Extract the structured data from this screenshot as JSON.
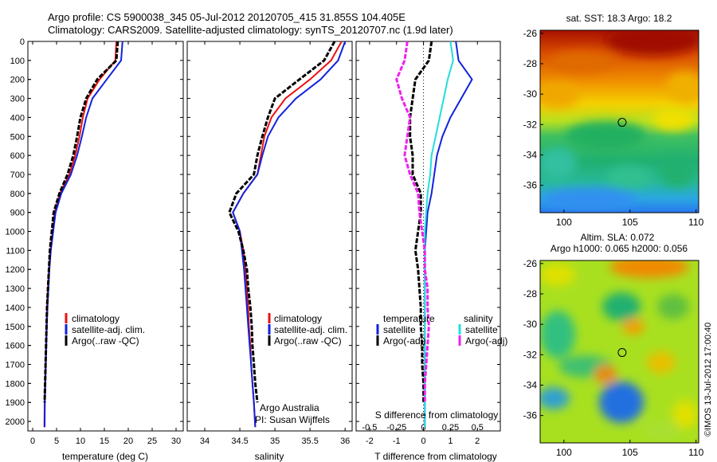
{
  "header": {
    "title_line1": "Argo profile: CS 5900038_345 05-Jul-2012 20120705_415 31.855S 104.405E",
    "title_line2": "Climatology: CARS2009. Satellite-adjusted climatology: synTS_20120707.nc (1.9d later)"
  },
  "depth_ticks": [
    "0",
    "100",
    "200",
    "300",
    "400",
    "500",
    "600",
    "700",
    "800",
    "900",
    "1000",
    "1100",
    "1200",
    "1300",
    "1400",
    "1500",
    "1600",
    "1700",
    "1800",
    "1900",
    "2000"
  ],
  "colors": {
    "climatology": "#ee1111",
    "satellite": "#1122dd",
    "argo": "#000000",
    "salinity_sat": "#22dddd",
    "salinity_argo": "#ee22ee"
  },
  "chart_data": [
    {
      "type": "line",
      "xlabel": "temperature (deg C)",
      "ylabel": "",
      "xlim": [
        -1,
        31.5
      ],
      "ylim": [
        2050,
        0
      ],
      "x_ticks": [
        "0",
        "5",
        "10",
        "15",
        "20",
        "25",
        "30"
      ],
      "legend": [
        "climatology",
        "satellite-adj. clim.",
        "Argo(..raw -QC)"
      ],
      "legend_position": "lower-right",
      "series": [
        {
          "name": "climatology",
          "x": [
            17.5,
            17.3,
            14,
            11.5,
            10.5,
            9.8,
            8.9,
            7.7,
            5.7,
            4.6,
            4.2,
            3.7,
            3.4,
            3.2,
            3.0,
            2.9,
            2.8,
            2.7,
            2.6,
            2.5,
            2.45
          ],
          "y": [
            0,
            100,
            200,
            300,
            400,
            500,
            600,
            700,
            800,
            900,
            1000,
            1100,
            1200,
            1300,
            1400,
            1500,
            1600,
            1700,
            1800,
            1900,
            2030
          ]
        },
        {
          "name": "satellite-adj. clim.",
          "x": [
            18.8,
            18.5,
            15.5,
            12.5,
            11.2,
            10.3,
            9.3,
            8.0,
            6.0,
            4.8,
            4.3,
            3.8,
            3.5,
            3.3,
            3.1,
            2.95,
            2.85,
            2.75,
            2.65,
            2.55,
            2.5
          ],
          "y": [
            0,
            100,
            200,
            300,
            400,
            500,
            600,
            700,
            800,
            900,
            1000,
            1100,
            1200,
            1300,
            1400,
            1500,
            1600,
            1700,
            1800,
            1900,
            2030
          ]
        },
        {
          "name": "Argo(..raw -QC)",
          "x": [
            17.8,
            17.5,
            13.5,
            11.2,
            10.0,
            9.3,
            8.5,
            7.3,
            5.6,
            4.4,
            4.0,
            3.6,
            3.4,
            3.2,
            3.0,
            2.9,
            2.8,
            2.7,
            2.6,
            2.5
          ],
          "y": [
            0,
            100,
            200,
            300,
            400,
            500,
            600,
            700,
            800,
            900,
            1000,
            1100,
            1200,
            1300,
            1400,
            1500,
            1600,
            1700,
            1800,
            1900
          ]
        }
      ]
    },
    {
      "type": "line",
      "xlabel": "salinity",
      "ylabel": "",
      "xlim": [
        33.75,
        36.1
      ],
      "ylim": [
        2050,
        0
      ],
      "x_ticks": [
        "34",
        "34.5",
        "35",
        "35.5",
        "36"
      ],
      "legend": [
        "climatology",
        "satellite-adj. clim.",
        "Argo(..raw -QC)"
      ],
      "legend_position": "lower-right",
      "annotations": [
        "Argo Australia",
        "PI: Susan Wijffels"
      ],
      "series": [
        {
          "name": "climatology",
          "x": [
            35.95,
            35.8,
            35.5,
            35.15,
            34.95,
            34.85,
            34.8,
            34.75,
            34.55,
            34.4,
            34.5,
            34.55,
            34.58,
            34.6,
            34.62,
            34.63,
            34.65,
            34.66,
            34.68,
            34.7,
            34.72
          ],
          "y": [
            0,
            100,
            200,
            300,
            400,
            500,
            600,
            700,
            800,
            900,
            1000,
            1100,
            1200,
            1300,
            1400,
            1500,
            1600,
            1700,
            1800,
            1900,
            2030
          ]
        },
        {
          "name": "satellite-adj. clim.",
          "x": [
            36.0,
            35.9,
            35.65,
            35.3,
            35.05,
            34.9,
            34.82,
            34.75,
            34.55,
            34.4,
            34.5,
            34.53,
            34.56,
            34.58,
            34.6,
            34.62,
            34.64,
            34.66,
            34.68,
            34.7,
            34.72
          ],
          "y": [
            0,
            100,
            200,
            300,
            400,
            500,
            600,
            700,
            800,
            900,
            1000,
            1100,
            1200,
            1300,
            1400,
            1500,
            1600,
            1700,
            1800,
            1900,
            2030
          ]
        },
        {
          "name": "Argo(..raw -QC)",
          "x": [
            35.85,
            35.7,
            35.35,
            35.0,
            34.9,
            34.82,
            34.75,
            34.7,
            34.45,
            34.35,
            34.48,
            34.55,
            34.6,
            34.62,
            34.65,
            34.67,
            34.68,
            34.7,
            34.72,
            34.75
          ],
          "y": [
            0,
            100,
            200,
            300,
            400,
            500,
            600,
            700,
            800,
            900,
            1000,
            1100,
            1200,
            1300,
            1400,
            1500,
            1600,
            1700,
            1800,
            1900
          ]
        }
      ]
    },
    {
      "type": "line",
      "xlabel": "T difference from climatology",
      "top_axis_label": "S difference from climatology",
      "xlim": [
        -2.5,
        2.85
      ],
      "ylim": [
        2050,
        0
      ],
      "x_ticks": [
        "-2",
        "-1",
        "0",
        "1",
        "2"
      ],
      "top_ticks": [
        {
          "label": "-0.5",
          "x": -2.0
        },
        {
          "label": "-0.25",
          "x": -1.0
        },
        {
          "label": "0",
          "x": 0.0
        },
        {
          "label": "0.25",
          "x": 1.0
        },
        {
          "label": "0.5",
          "x": 2.0
        }
      ],
      "legend_temperature_title": "temperature",
      "legend_salinity_title": "salinity",
      "legend": [
        "satellite",
        "Argo(-adj)",
        "satellite",
        "Argo(-adj)"
      ],
      "series": [
        {
          "name": "temperature satellite",
          "x": [
            1.2,
            1.3,
            1.8,
            1.4,
            1.0,
            0.7,
            0.5,
            0.4,
            0.3,
            0.15,
            0.1,
            0.05,
            0.05,
            0.05,
            0.05,
            0.05,
            0.05,
            0.05,
            0.05,
            0.05,
            0.05
          ],
          "y": [
            0,
            100,
            200,
            300,
            400,
            500,
            600,
            700,
            800,
            900,
            1000,
            1100,
            1200,
            1300,
            1400,
            1500,
            1600,
            1700,
            1800,
            1900,
            2030
          ]
        },
        {
          "name": "temperature Argo(-adj)",
          "x": [
            0.3,
            0.2,
            -0.3,
            -0.4,
            -0.5,
            -0.5,
            -0.4,
            -0.4,
            -0.1,
            -0.1,
            -0.2,
            -0.3,
            -0.2,
            -0.15,
            -0.1,
            -0.1,
            -0.05,
            -0.05,
            0.0,
            0.0
          ],
          "y": [
            0,
            100,
            200,
            300,
            400,
            500,
            600,
            700,
            800,
            900,
            1000,
            1100,
            1200,
            1300,
            1400,
            1500,
            1600,
            1700,
            1800,
            1900
          ]
        },
        {
          "name": "salinity satellite",
          "x": [
            1.0,
            1.1,
            0.9,
            0.75,
            0.6,
            0.45,
            0.3,
            0.25,
            0.15,
            0.1,
            0.05,
            0.05,
            0.05,
            0.05,
            0.05,
            0.05,
            0.05,
            0.05,
            0.05,
            0.05,
            0.05
          ],
          "y": [
            0,
            100,
            200,
            300,
            400,
            500,
            600,
            700,
            800,
            900,
            1000,
            1100,
            1200,
            1300,
            1400,
            1500,
            1600,
            1700,
            1800,
            1900,
            2030
          ]
        },
        {
          "name": "salinity Argo(-adj)",
          "x": [
            -0.6,
            -0.7,
            -1.0,
            -0.8,
            -0.5,
            -0.6,
            -0.7,
            -0.5,
            -0.2,
            -0.15,
            -0.05,
            0.05,
            0.05,
            0.15,
            0.15,
            0.2,
            0.15,
            0.1,
            0.05,
            0.05
          ],
          "y": [
            0,
            100,
            200,
            300,
            400,
            500,
            600,
            700,
            800,
            900,
            1000,
            1100,
            1200,
            1300,
            1400,
            1500,
            1600,
            1700,
            1800,
            1900
          ]
        }
      ]
    },
    {
      "type": "heatmap",
      "title": "sat. SST: 18.3 Argo: 18.2",
      "xlim": [
        98.2,
        110.2
      ],
      "ylim": [
        -37.8,
        -25.8
      ],
      "x_ticks": [
        "100",
        "105",
        "110"
      ],
      "y_ticks": [
        "-26",
        "-28",
        "-30",
        "-32",
        "-34",
        "-36"
      ],
      "marker": {
        "lon": 104.405,
        "lat": -31.855
      }
    },
    {
      "type": "heatmap",
      "title": "Altim. SLA: 0.072",
      "subtitle": "Argo h1000: 0.065 h2000: 0.056",
      "xlim": [
        98.2,
        110.2
      ],
      "ylim": [
        -37.8,
        -25.8
      ],
      "x_ticks": [
        "100",
        "105",
        "110"
      ],
      "y_ticks": [
        "-26",
        "-28",
        "-30",
        "-32",
        "-34",
        "-36"
      ],
      "marker": {
        "lon": 104.405,
        "lat": -31.855
      }
    }
  ],
  "footer": {
    "credit": "©IMOS 13-Jul-2012 17:00:40"
  }
}
